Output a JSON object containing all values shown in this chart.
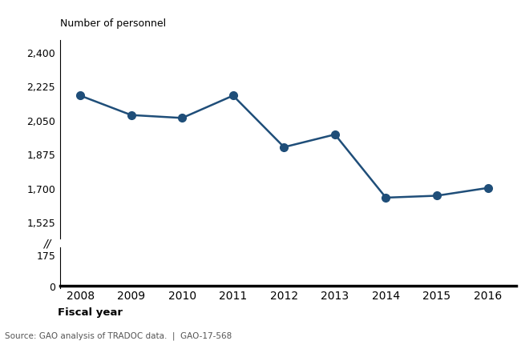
{
  "years": [
    2008,
    2009,
    2010,
    2011,
    2012,
    2013,
    2014,
    2015,
    2016
  ],
  "values": [
    2175,
    2075,
    2060,
    2175,
    1910,
    1975,
    1650,
    1660,
    1700
  ],
  "line_color": "#1F4E79",
  "marker_color": "#1F4E79",
  "marker_size": 7,
  "line_width": 1.8,
  "ylabel": "Number of personnel",
  "xlabel": "Fiscal year",
  "source": "Source: GAO analysis of TRADOC data.  |  GAO-17-568",
  "yticks_upper": [
    1525,
    1700,
    1875,
    2050,
    2225,
    2400
  ],
  "yticks_lower": [
    0,
    175
  ],
  "background_color": "#FFFFFF",
  "text_color": "#000000",
  "upper_ylim": [
    1440,
    2460
  ],
  "lower_ylim": [
    -15,
    220
  ]
}
